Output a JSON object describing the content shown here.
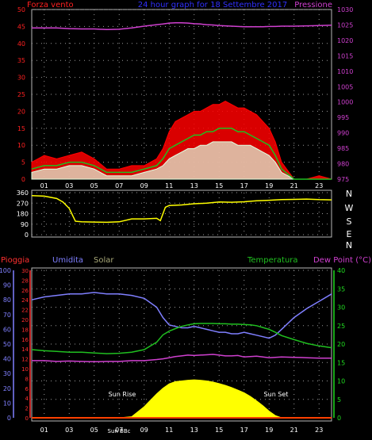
{
  "colors": {
    "wind": "#ff2020",
    "pressure": "#d040d0",
    "title": "#3030ff",
    "gust": "#ff0000",
    "avg": "#20c020",
    "speed": "#e0ffe0",
    "direction": "#ffff00",
    "rain": "#ff3030",
    "humidity": "#7f7fff",
    "solar": "#ffff00",
    "temperature": "#20c020",
    "dewpoint": "#d040d0",
    "temp_axis": "#20dd20",
    "hum_axis": "#8080ff",
    "rain_line": "#ff4000",
    "grid": "#9a9a9a"
  },
  "header": {
    "left_label": "Forza vento",
    "center_label": "24 hour graph for 18 Settembre 2017",
    "right_label": "Pressione"
  },
  "compass": [
    "N",
    "W",
    "S",
    "E",
    "N"
  ],
  "sun_labels": {
    "rise": "Sun Rise",
    "set": "Sun Set",
    "noon": "Sun BBc"
  },
  "lower_labels": {
    "rain": "Pioggia",
    "humidity": "Umidita",
    "solar": "Solar",
    "temperature": "Temperatura",
    "dewpoint": "Dew Point (°C)"
  },
  "chart_data": [
    {
      "type": "line",
      "name": "wind-pressure",
      "x_ticks": [
        "01",
        "03",
        "05",
        "07",
        "09",
        "11",
        "13",
        "15",
        "17",
        "19",
        "21",
        "23"
      ],
      "left_axis": {
        "ticks": [
          0,
          5,
          10,
          15,
          20,
          25,
          30,
          35,
          40,
          45,
          50
        ],
        "ylim": [
          0,
          50
        ]
      },
      "right_axis": {
        "ticks": [
          975,
          980,
          985,
          990,
          995,
          1000,
          1005,
          1010,
          1015,
          1020,
          1025,
          1030
        ],
        "ylim": [
          975,
          1030
        ]
      },
      "x": [
        0,
        1,
        2,
        3,
        4,
        5,
        6,
        7,
        8,
        9,
        10,
        10.5,
        11,
        11.5,
        12,
        12.5,
        13,
        13.5,
        14,
        14.5,
        15,
        15.5,
        16,
        16.5,
        17,
        17.5,
        18,
        18.5,
        19,
        19.5,
        20,
        21,
        22,
        23,
        24
      ],
      "series": [
        {
          "key": "gust",
          "values": [
            5,
            7,
            6,
            7,
            8,
            6,
            3,
            3,
            4,
            4,
            6,
            9,
            14,
            17,
            18,
            19,
            20,
            20,
            21,
            22,
            22,
            23,
            22,
            21,
            21,
            20,
            19,
            17,
            15,
            11,
            5,
            0,
            0,
            1,
            0
          ]
        },
        {
          "key": "avg",
          "values": [
            3,
            4,
            4,
            5,
            5,
            4,
            2,
            2,
            2,
            3,
            4,
            6,
            9,
            10,
            11,
            12,
            13,
            13,
            14,
            14,
            15,
            15,
            15,
            14,
            14,
            13,
            12,
            11,
            10,
            7,
            3,
            0,
            0,
            0,
            0
          ]
        },
        {
          "key": "speed",
          "values": [
            2,
            3,
            3,
            4,
            4,
            3,
            1,
            1,
            1,
            2,
            3,
            4,
            6,
            7,
            8,
            9,
            9,
            10,
            10,
            11,
            11,
            11,
            11,
            10,
            10,
            10,
            9,
            8,
            7,
            5,
            2,
            0,
            0,
            0,
            0
          ]
        },
        {
          "key": "pressure",
          "axis": "right",
          "values": [
            1024,
            1024,
            1024,
            1023.8,
            1023.7,
            1023.7,
            1023.5,
            1023.6,
            1024,
            1024.6,
            1025.1,
            1025.3,
            1025.6,
            1025.7,
            1025.7,
            1025.6,
            1025.4,
            1025.3,
            1025.1,
            1025,
            1024.8,
            1024.7,
            1024.6,
            1024.5,
            1024.4,
            1024.4,
            1024.4,
            1024.4,
            1024.5,
            1024.5,
            1024.6,
            1024.6,
            1024.7,
            1024.8,
            1024.9
          ]
        }
      ]
    },
    {
      "type": "line",
      "name": "wind-direction",
      "x_ticks": [
        "01",
        "03",
        "05",
        "07",
        "09",
        "11",
        "13",
        "15",
        "17",
        "19",
        "21",
        "23"
      ],
      "left_axis": {
        "ticks": [
          0,
          90,
          180,
          270,
          360
        ],
        "ylim": [
          0,
          360
        ]
      },
      "x": [
        0,
        1,
        2,
        2.5,
        3,
        3.5,
        4,
        5,
        6,
        7,
        8,
        9,
        10,
        10.3,
        10.7,
        11,
        12,
        13,
        14,
        15,
        16,
        17,
        18,
        19,
        20,
        21,
        22,
        23,
        24
      ],
      "series": [
        {
          "key": "direction",
          "values": [
            335,
            330,
            310,
            280,
            225,
            115,
            110,
            108,
            106,
            110,
            135,
            135,
            140,
            120,
            235,
            250,
            255,
            265,
            270,
            280,
            278,
            282,
            290,
            295,
            300,
            302,
            305,
            300,
            298
          ]
        }
      ]
    },
    {
      "type": "area",
      "name": "temp-humidity-solar",
      "x_ticks": [
        "01",
        "03",
        "05",
        "07",
        "09",
        "11",
        "13",
        "15",
        "17",
        "19",
        "21",
        "23"
      ],
      "humidity_axis": {
        "ticks": [
          0,
          10,
          20,
          30,
          40,
          50,
          60,
          70,
          80,
          90,
          100
        ],
        "ylim": [
          0,
          100
        ]
      },
      "rain_axis": {
        "ticks": [
          0,
          2,
          4,
          6,
          8,
          10,
          12,
          14,
          16,
          18,
          20,
          22,
          24,
          26,
          28,
          30
        ],
        "ylim": [
          0,
          30
        ]
      },
      "temp_axis": {
        "ticks": [
          0,
          5,
          10,
          15,
          20,
          25,
          30,
          35,
          40
        ],
        "ylim": [
          0,
          40
        ]
      },
      "x": [
        0,
        1,
        2,
        3,
        4,
        5,
        6,
        7,
        8,
        9,
        10,
        10.5,
        11,
        11.5,
        12,
        12.5,
        13,
        13.5,
        14,
        14.5,
        15,
        15.5,
        16,
        16.5,
        17,
        17.5,
        18,
        18.5,
        19,
        19.5,
        20,
        21,
        22,
        23,
        24
      ],
      "series": [
        {
          "key": "humidity",
          "values": [
            80,
            82,
            83,
            84,
            84,
            85,
            84,
            84,
            83,
            81,
            75,
            68,
            63,
            62,
            61,
            61,
            62,
            61,
            60,
            59,
            58,
            58,
            57,
            57,
            58,
            57,
            56,
            55,
            54,
            56,
            60,
            68,
            74,
            79,
            84
          ]
        },
        {
          "key": "rain",
          "values": [
            0,
            0,
            0,
            0,
            0,
            0,
            0,
            0,
            0,
            0,
            0,
            0,
            0,
            0,
            0,
            0,
            0,
            0,
            0,
            0,
            0,
            0,
            0,
            0,
            0,
            0,
            0,
            0,
            0,
            0,
            0,
            0,
            0,
            0,
            0
          ]
        },
        {
          "key": "solar",
          "values": [
            0,
            0,
            0,
            0,
            0,
            0,
            0,
            0,
            0.3,
            3,
            6.5,
            8,
            9.2,
            9.8,
            10,
            10.2,
            10.3,
            10.2,
            10,
            9.7,
            9.3,
            8.8,
            8.2,
            7.5,
            6.8,
            5.8,
            4.6,
            3.3,
            1.8,
            0.6,
            0,
            0,
            0,
            0,
            0
          ]
        },
        {
          "key": "temperature",
          "values": [
            18.5,
            18.2,
            18,
            17.8,
            17.8,
            17.6,
            17.4,
            17.5,
            17.8,
            18.5,
            20.5,
            22.5,
            23.5,
            24.2,
            24.8,
            25.2,
            25.5,
            25.6,
            25.6,
            25.6,
            25.5,
            25.5,
            25.4,
            25.4,
            25.3,
            25.2,
            25,
            24.5,
            24,
            23.2,
            22.3,
            21.2,
            20.2,
            19.5,
            19
          ]
        },
        {
          "key": "dewpoint",
          "values": [
            15.5,
            15.5,
            15.3,
            15.4,
            15.3,
            15.2,
            15.3,
            15.3,
            15.5,
            15.5,
            15.8,
            16,
            16.3,
            16.6,
            16.8,
            17,
            16.9,
            17,
            17.1,
            17.2,
            17,
            16.8,
            16.8,
            16.9,
            16.5,
            16.6,
            16.7,
            16.5,
            16.3,
            16.4,
            16.5,
            16.4,
            16.3,
            16.2,
            16.2
          ]
        }
      ]
    }
  ]
}
